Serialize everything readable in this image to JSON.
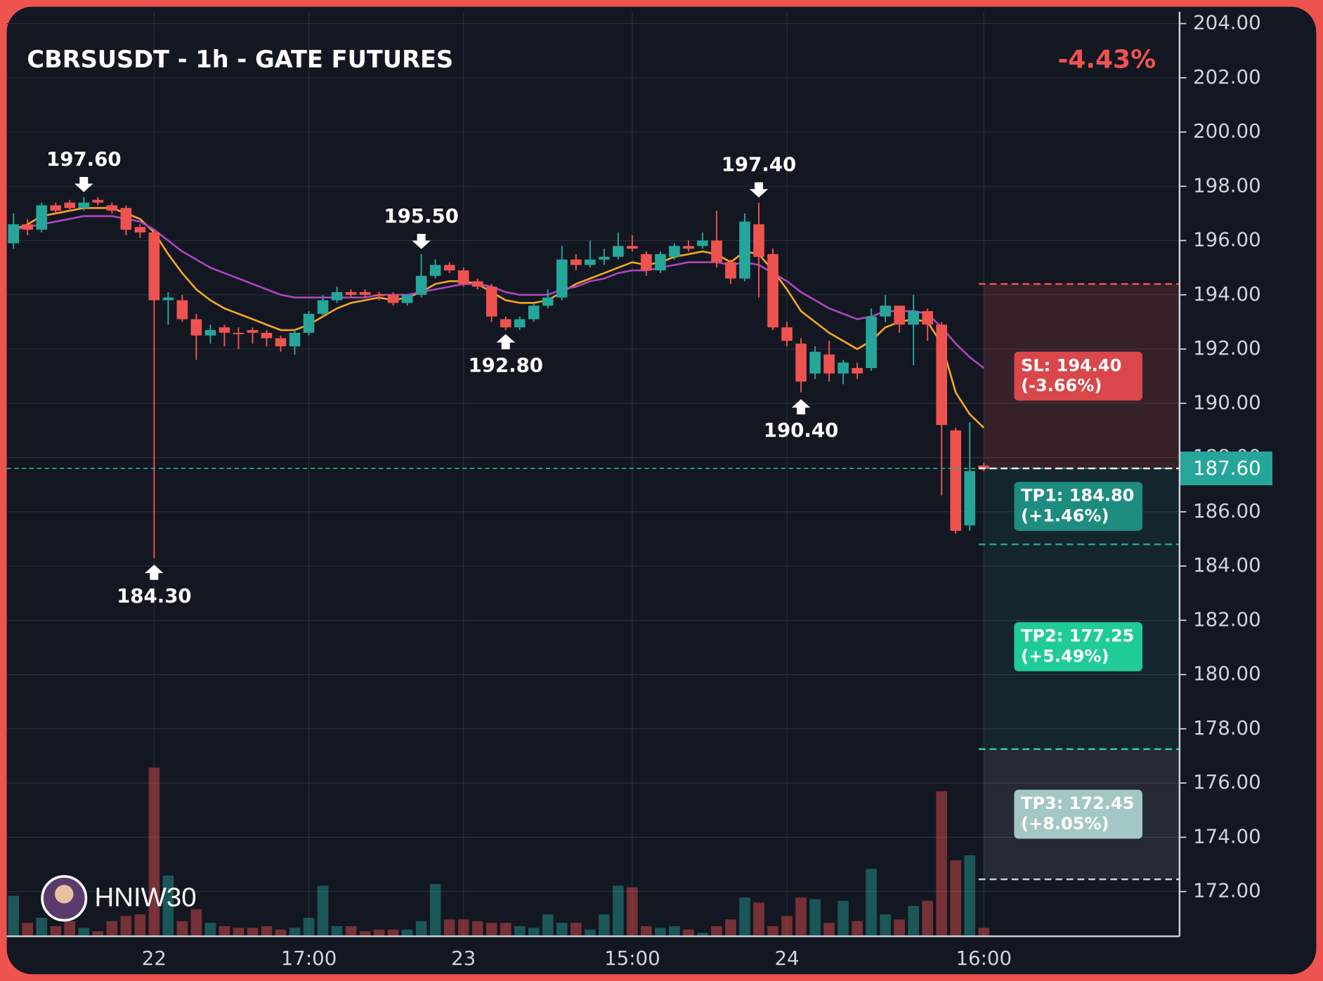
{
  "chart_data": {
    "type": "candlestick",
    "title": "CBRSUSDT - 1h - GATE FUTURES",
    "change_label": "-4.43%",
    "watermark": "HNIW30",
    "categories": [
      null,
      null,
      null,
      null,
      null,
      null,
      null,
      null,
      null,
      null,
      "22",
      null,
      null,
      null,
      null,
      null,
      null,
      null,
      null,
      null,
      null,
      "17:00",
      null,
      null,
      null,
      null,
      null,
      null,
      null,
      null,
      null,
      null,
      "23",
      null,
      null,
      null,
      null,
      null,
      null,
      null,
      null,
      null,
      null,
      null,
      "15:00",
      null,
      null,
      null,
      null,
      null,
      null,
      null,
      null,
      null,
      null,
      "24",
      null,
      null,
      null,
      null,
      null,
      null,
      null,
      null,
      null,
      null,
      null,
      null,
      null,
      "16:00"
    ],
    "open": [
      195.9,
      196.6,
      196.4,
      197.3,
      197.4,
      197.2,
      197.5,
      197.3,
      197.2,
      196.5,
      196.3,
      193.8,
      193.8,
      193.1,
      192.5,
      192.8,
      192.6,
      192.7,
      192.6,
      192.4,
      192.1,
      192.6,
      193.3,
      193.8,
      194.1,
      194.1,
      194.0,
      194.0,
      193.7,
      194.0,
      194.7,
      195.1,
      194.9,
      194.5,
      194.3,
      193.1,
      192.8,
      193.1,
      193.6,
      193.9,
      195.3,
      195.1,
      195.3,
      195.4,
      195.8,
      195.5,
      194.9,
      195.4,
      195.8,
      195.8,
      196.0,
      195.2,
      194.6,
      196.6,
      195.5,
      192.8,
      192.2,
      191.1,
      191.8,
      191.1,
      191.3,
      191.3,
      193.2,
      193.6,
      192.9,
      193.4,
      192.9,
      189.0,
      185.5,
      187.7
    ],
    "close": [
      196.6,
      196.4,
      197.3,
      197.1,
      197.2,
      197.4,
      197.4,
      197.1,
      196.4,
      196.3,
      193.8,
      193.9,
      193.1,
      192.5,
      192.7,
      192.6,
      192.55,
      192.6,
      192.4,
      192.1,
      192.6,
      193.3,
      193.8,
      194.1,
      194.0,
      194.0,
      193.95,
      193.7,
      194.0,
      194.7,
      195.1,
      194.9,
      194.4,
      194.3,
      193.2,
      192.8,
      193.1,
      193.6,
      193.9,
      195.3,
      195.1,
      195.3,
      195.4,
      195.8,
      195.7,
      194.9,
      195.5,
      195.8,
      195.7,
      196.0,
      195.2,
      194.6,
      196.7,
      195.4,
      192.8,
      192.3,
      190.8,
      191.9,
      191.1,
      191.5,
      191.1,
      193.2,
      193.6,
      192.9,
      193.4,
      192.9,
      189.2,
      185.3,
      187.5,
      187.6
    ],
    "high": [
      197.0,
      196.8,
      197.4,
      197.4,
      197.5,
      197.6,
      197.6,
      197.4,
      197.3,
      196.6,
      196.4,
      194.1,
      194.0,
      193.3,
      192.9,
      192.9,
      192.8,
      192.8,
      192.7,
      192.5,
      192.7,
      193.4,
      194.0,
      194.3,
      194.2,
      194.2,
      194.1,
      194.1,
      194.0,
      195.5,
      195.3,
      195.2,
      195.0,
      194.6,
      194.4,
      193.2,
      193.2,
      193.7,
      194.2,
      195.8,
      195.5,
      196.0,
      195.7,
      196.3,
      196.2,
      195.6,
      195.6,
      195.9,
      196.0,
      196.3,
      197.1,
      195.3,
      197.0,
      197.4,
      195.7,
      193.0,
      192.4,
      192.1,
      192.3,
      191.6,
      191.5,
      193.5,
      194.0,
      193.6,
      194.0,
      193.5,
      193.0,
      189.1,
      189.3,
      187.8
    ],
    "low": [
      195.7,
      196.2,
      196.3,
      197.0,
      197.1,
      197.1,
      197.3,
      197.0,
      196.2,
      196.1,
      184.3,
      192.9,
      193.0,
      191.6,
      192.2,
      192.1,
      192.0,
      192.2,
      192.1,
      191.9,
      191.8,
      192.5,
      193.2,
      193.7,
      193.9,
      193.9,
      193.8,
      193.6,
      193.6,
      193.9,
      194.6,
      194.8,
      194.3,
      194.2,
      193.0,
      192.7,
      192.7,
      193.0,
      193.5,
      193.8,
      194.9,
      195.0,
      195.1,
      195.3,
      195.6,
      194.7,
      194.8,
      195.3,
      195.6,
      195.7,
      195.0,
      194.4,
      194.5,
      193.9,
      192.7,
      192.1,
      190.4,
      190.9,
      190.8,
      190.7,
      190.9,
      191.2,
      193.0,
      192.6,
      191.4,
      192.3,
      186.6,
      185.2,
      185.3,
      187.5
    ],
    "volume": [
      24,
      8,
      11,
      6,
      9,
      5,
      3,
      9,
      12,
      13,
      100,
      36,
      9,
      16,
      8,
      6,
      5,
      5,
      6,
      4,
      5,
      11,
      30,
      6,
      6,
      3,
      4,
      4,
      4,
      9,
      31,
      10,
      10,
      9,
      8,
      8,
      6,
      5,
      13,
      8,
      8,
      4,
      13,
      30,
      29,
      6,
      5,
      6,
      4,
      2,
      6,
      10,
      23,
      20,
      6,
      12,
      23,
      22,
      8,
      21,
      9,
      40,
      13,
      10,
      18,
      21,
      86,
      45,
      48,
      5
    ],
    "up_color": "#26a69a",
    "down_color": "#ef5350",
    "series": [
      {
        "color": "#f5a623",
        "values": [
          196.4,
          196.6,
          196.9,
          197.0,
          197.1,
          197.2,
          197.2,
          197.2,
          197.0,
          196.8,
          196.3,
          195.5,
          194.8,
          194.2,
          193.8,
          193.5,
          193.3,
          193.1,
          192.9,
          192.7,
          192.7,
          192.9,
          193.2,
          193.5,
          193.7,
          193.8,
          193.9,
          193.8,
          193.9,
          194.1,
          194.4,
          194.5,
          194.5,
          194.4,
          194.1,
          193.8,
          193.7,
          193.7,
          193.8,
          194.1,
          194.4,
          194.6,
          194.8,
          195.0,
          195.2,
          195.1,
          195.2,
          195.4,
          195.5,
          195.6,
          195.5,
          195.2,
          195.6,
          195.5,
          194.9,
          194.2,
          193.4,
          193.0,
          192.6,
          192.3,
          192.0,
          192.3,
          192.8,
          193.0,
          193.1,
          193.0,
          192.2,
          190.4,
          189.6,
          189.1
        ]
      },
      {
        "color": "#ab47bc",
        "values": [
          196.4,
          196.5,
          196.6,
          196.7,
          196.8,
          196.9,
          196.9,
          196.9,
          196.8,
          196.7,
          196.4,
          196.0,
          195.6,
          195.3,
          195.0,
          194.8,
          194.6,
          194.4,
          194.2,
          194.0,
          193.9,
          193.9,
          193.9,
          193.9,
          193.9,
          193.9,
          194.0,
          194.0,
          194.0,
          194.1,
          194.2,
          194.3,
          194.4,
          194.4,
          194.3,
          194.1,
          194.0,
          194.0,
          194.0,
          194.2,
          194.3,
          194.5,
          194.6,
          194.8,
          194.9,
          194.9,
          195.0,
          195.1,
          195.2,
          195.2,
          195.2,
          195.1,
          195.2,
          195.1,
          194.8,
          194.5,
          194.1,
          193.8,
          193.5,
          193.3,
          193.1,
          193.2,
          193.4,
          193.4,
          193.4,
          193.3,
          192.8,
          192.2,
          191.7,
          191.3
        ]
      }
    ],
    "ylim": [
      170.35,
      204.62
    ],
    "yticks": [
      {
        "value": 172,
        "label": "172.00"
      },
      {
        "value": 174,
        "label": "174.00"
      },
      {
        "value": 176,
        "label": "176.00"
      },
      {
        "value": 178,
        "label": "178.00"
      },
      {
        "value": 180,
        "label": "180.00"
      },
      {
        "value": 182,
        "label": "182.00"
      },
      {
        "value": 184,
        "label": "184.00"
      },
      {
        "value": 186,
        "label": "186.00"
      },
      {
        "value": 188,
        "label": "188.00"
      },
      {
        "value": 190,
        "label": "190.00"
      },
      {
        "value": 192,
        "label": "192.00"
      },
      {
        "value": 194,
        "label": "194.00"
      },
      {
        "value": 196,
        "label": "196.00"
      },
      {
        "value": 198,
        "label": "198.00"
      },
      {
        "value": 200,
        "label": "200.00"
      },
      {
        "value": 202,
        "label": "202.00"
      },
      {
        "value": 204,
        "label": "204.00"
      }
    ],
    "grid": true,
    "last_price": {
      "value": 187.6,
      "label": "187.60"
    },
    "levels": [
      {
        "label": "SL: 194.40",
        "note": "(-3.66%)",
        "value": 194.4,
        "color": "#d9474a",
        "line_color": "#ef5350"
      },
      {
        "label": "TP1: 184.80",
        "note": "(+1.46%)",
        "value": 184.8,
        "color": "#1f8c80",
        "line_color": "#26a69a"
      },
      {
        "label": "TP2: 177.25",
        "note": "(+5.49%)",
        "value": 177.25,
        "color": "#1fcc97",
        "line_color": "#2ed3b0"
      },
      {
        "label": "TP3: 172.45",
        "note": "(+8.05%)",
        "value": 172.45,
        "color": "#a3c7c4",
        "line_color": "#d1d4dc"
      }
    ],
    "annotations": [
      {
        "x": 5,
        "value": 197.6,
        "label": "197.60"
      },
      {
        "x": 10,
        "value": 184.3,
        "label": "184.30"
      },
      {
        "x": 29,
        "value": 195.5,
        "label": "195.50"
      },
      {
        "x": 35,
        "value": 192.8,
        "label": "192.80"
      },
      {
        "x": 53,
        "value": 197.4,
        "label": "197.40"
      },
      {
        "x": 56,
        "value": 190.4,
        "label": "190.40"
      }
    ]
  }
}
